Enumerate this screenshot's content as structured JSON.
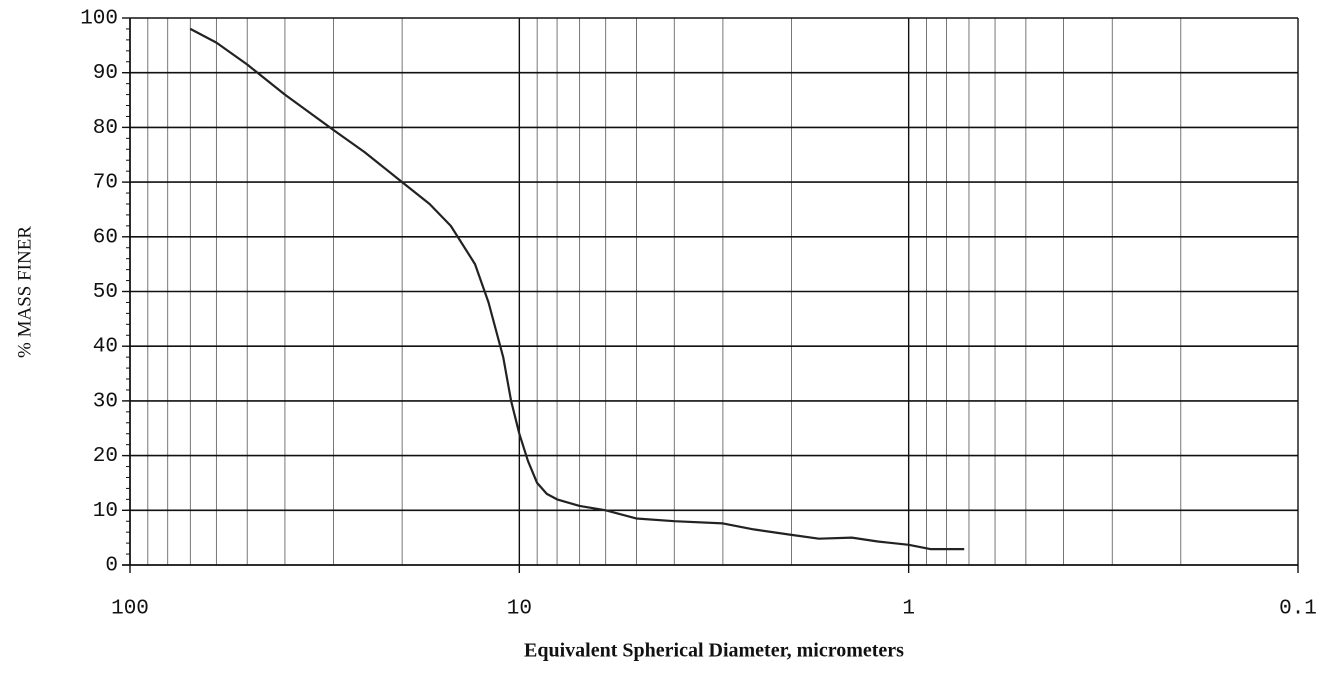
{
  "chart_data": {
    "type": "line",
    "xlabel": "Equivalent Spherical Diameter, micrometers",
    "ylabel": "% MASS FINER",
    "x": [
      70,
      60,
      50,
      40,
      30,
      25,
      20,
      17,
      15,
      13,
      12,
      11,
      10.5,
      10,
      9.5,
      9,
      8.5,
      8,
      7,
      6,
      5,
      4,
      3,
      2.5,
      2,
      1.7,
      1.4,
      1.2,
      1,
      0.88,
      0.72
    ],
    "values": [
      98,
      95.5,
      91.5,
      86,
      79.5,
      75.5,
      70,
      66,
      62,
      55,
      48,
      38,
      30,
      24,
      19,
      15,
      13,
      12,
      10.8,
      10,
      8.5,
      8,
      7.6,
      6.5,
      5.5,
      4.8,
      5,
      4.3,
      3.7,
      2.9,
      2.9
    ],
    "color": "#222222",
    "xscale": "log",
    "xlim": [
      100,
      0.1
    ],
    "xticks": [
      100,
      10,
      1,
      0.1
    ],
    "ylim": [
      0,
      100
    ],
    "yticks": [
      0,
      10,
      20,
      30,
      40,
      50,
      60,
      70,
      80,
      90,
      100
    ],
    "grid": true,
    "minor_grid": true
  }
}
